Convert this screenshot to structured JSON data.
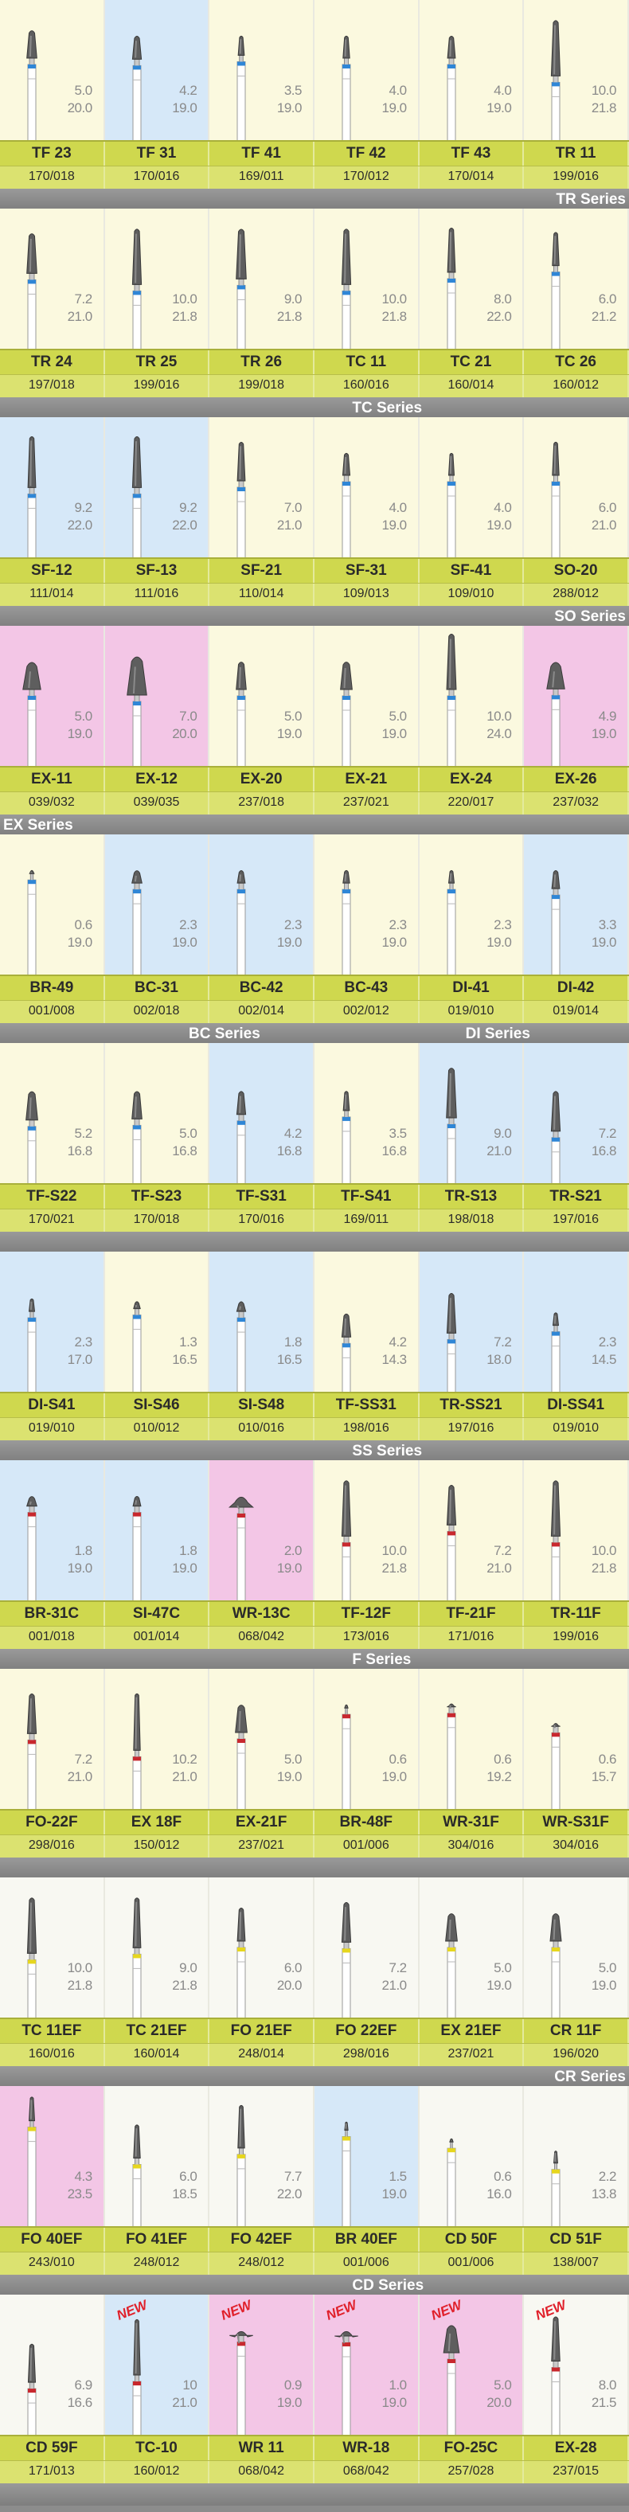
{
  "rows": [
    {
      "ring": "#2f86d6",
      "cells": [
        {
          "name": "TF 23",
          "code": "170/018",
          "head": "5.0",
          "length": "20.0",
          "bg": "#fbf9df"
        },
        {
          "name": "TF 31",
          "code": "170/016",
          "head": "4.2",
          "length": "19.0",
          "bg": "#d6e8f8"
        },
        {
          "name": "TF 41",
          "code": "169/011",
          "head": "3.5",
          "length": "19.0",
          "bg": "#fbf9df"
        },
        {
          "name": "TF 42",
          "code": "170/012",
          "head": "4.0",
          "length": "19.0",
          "bg": "#fbf9df"
        },
        {
          "name": "TF 43",
          "code": "170/014",
          "head": "4.0",
          "length": "19.0",
          "bg": "#fbf9df"
        },
        {
          "name": "TR 11",
          "code": "199/016",
          "head": "10.0",
          "length": "21.8",
          "bg": "#fbf9df"
        }
      ],
      "series": [
        {
          "text": "TR Series",
          "position": "right"
        }
      ]
    },
    {
      "ring": "#2f86d6",
      "cells": [
        {
          "name": "TR 24",
          "code": "197/018",
          "head": "7.2",
          "length": "21.0",
          "bg": "#fbf9df"
        },
        {
          "name": "TR 25",
          "code": "199/016",
          "head": "10.0",
          "length": "21.8",
          "bg": "#fbf9df"
        },
        {
          "name": "TR 26",
          "code": "199/018",
          "head": "9.0",
          "length": "21.8",
          "bg": "#fbf9df"
        },
        {
          "name": "TC 11",
          "code": "160/016",
          "head": "10.0",
          "length": "21.8",
          "bg": "#fbf9df"
        },
        {
          "name": "TC 21",
          "code": "160/014",
          "head": "8.0",
          "length": "22.0",
          "bg": "#fbf9df"
        },
        {
          "name": "TC 26",
          "code": "160/012",
          "head": "6.0",
          "length": "21.2",
          "bg": "#fbf9df"
        }
      ],
      "series": [
        {
          "text": "TC Series",
          "position": "center"
        }
      ]
    },
    {
      "ring": "#2f86d6",
      "cells": [
        {
          "name": "SF-12",
          "code": "111/014",
          "head": "9.2",
          "length": "22.0",
          "bg": "#d6e8f8"
        },
        {
          "name": "SF-13",
          "code": "111/016",
          "head": "9.2",
          "length": "22.0",
          "bg": "#d6e8f8"
        },
        {
          "name": "SF-21",
          "code": "110/014",
          "head": "7.0",
          "length": "21.0",
          "bg": "#fbf9df"
        },
        {
          "name": "SF-31",
          "code": "109/013",
          "head": "4.0",
          "length": "19.0",
          "bg": "#fbf9df"
        },
        {
          "name": "SF-41",
          "code": "109/010",
          "head": "4.0",
          "length": "19.0",
          "bg": "#fbf9df"
        },
        {
          "name": "SO-20",
          "code": "288/012",
          "head": "6.0",
          "length": "21.0",
          "bg": "#fbf9df"
        }
      ],
      "series": [
        {
          "text": "SO Series",
          "position": "right"
        }
      ]
    },
    {
      "ring": "#2f86d6",
      "cells": [
        {
          "name": "EX-11",
          "code": "039/032",
          "head": "5.0",
          "length": "19.0",
          "bg": "#f3c6e6"
        },
        {
          "name": "EX-12",
          "code": "039/035",
          "head": "7.0",
          "length": "20.0",
          "bg": "#f3c6e6"
        },
        {
          "name": "EX-20",
          "code": "237/018",
          "head": "5.0",
          "length": "19.0",
          "bg": "#fbf9df"
        },
        {
          "name": "EX-21",
          "code": "237/021",
          "head": "5.0",
          "length": "19.0",
          "bg": "#fbf9df"
        },
        {
          "name": "EX-24",
          "code": "220/017",
          "head": "10.0",
          "length": "24.0",
          "bg": "#fbf9df"
        },
        {
          "name": "EX-26",
          "code": "237/032",
          "head": "4.9",
          "length": "19.0",
          "bg": "#f3c6e6"
        }
      ],
      "series": [
        {
          "text": "EX Series",
          "position": "left"
        }
      ]
    },
    {
      "ring": "#2f86d6",
      "cells": [
        {
          "name": "BR-49",
          "code": "001/008",
          "head": "0.6",
          "length": "19.0",
          "bg": "#fbf9df"
        },
        {
          "name": "BC-31",
          "code": "002/018",
          "head": "2.3",
          "length": "19.0",
          "bg": "#d6e8f8"
        },
        {
          "name": "BC-42",
          "code": "002/014",
          "head": "2.3",
          "length": "19.0",
          "bg": "#d6e8f8"
        },
        {
          "name": "BC-43",
          "code": "002/012",
          "head": "2.3",
          "length": "19.0",
          "bg": "#fbf9df"
        },
        {
          "name": "DI-41",
          "code": "019/010",
          "head": "2.3",
          "length": "19.0",
          "bg": "#fbf9df"
        },
        {
          "name": "DI-42",
          "code": "019/014",
          "head": "3.3",
          "length": "19.0",
          "bg": "#d6e8f8"
        }
      ],
      "series": [
        {
          "text": "BC Series",
          "position": "center-left"
        },
        {
          "text": "DI Series",
          "position": "center-right"
        }
      ]
    },
    {
      "ring": "#2f86d6",
      "cells": [
        {
          "name": "TF-S22",
          "code": "170/021",
          "head": "5.2",
          "length": "16.8",
          "bg": "#fbf9df"
        },
        {
          "name": "TF-S23",
          "code": "170/018",
          "head": "5.0",
          "length": "16.8",
          "bg": "#fbf9df"
        },
        {
          "name": "TF-S31",
          "code": "170/016",
          "head": "4.2",
          "length": "16.8",
          "bg": "#d6e8f8"
        },
        {
          "name": "TF-S41",
          "code": "169/011",
          "head": "3.5",
          "length": "16.8",
          "bg": "#fbf9df"
        },
        {
          "name": "TR-S13",
          "code": "198/018",
          "head": "9.0",
          "length": "21.0",
          "bg": "#d6e8f8"
        },
        {
          "name": "TR-S21",
          "code": "197/016",
          "head": "7.2",
          "length": "16.8",
          "bg": "#d6e8f8"
        }
      ],
      "series": []
    },
    {
      "ring": "#2f86d6",
      "cells": [
        {
          "name": "DI-S41",
          "code": "019/010",
          "head": "2.3",
          "length": "17.0",
          "bg": "#d6e8f8"
        },
        {
          "name": "SI-S46",
          "code": "010/012",
          "head": "1.3",
          "length": "16.5",
          "bg": "#fbf9df"
        },
        {
          "name": "SI-S48",
          "code": "010/016",
          "head": "1.8",
          "length": "16.5",
          "bg": "#d6e8f8"
        },
        {
          "name": "TF-SS31",
          "code": "198/016",
          "head": "4.2",
          "length": "14.3",
          "bg": "#fbf9df"
        },
        {
          "name": "TR-SS21",
          "code": "197/016",
          "head": "7.2",
          "length": "18.0",
          "bg": "#d6e8f8"
        },
        {
          "name": "DI-SS41",
          "code": "019/010",
          "head": "2.3",
          "length": "14.5",
          "bg": "#d6e8f8"
        }
      ],
      "series": [
        {
          "text": "SS Series",
          "position": "center"
        }
      ]
    },
    {
      "ring": "#c8282e",
      "cells": [
        {
          "name": "BR-31C",
          "code": "001/018",
          "head": "1.8",
          "length": "19.0",
          "bg": "#d6e8f8"
        },
        {
          "name": "SI-47C",
          "code": "001/014",
          "head": "1.8",
          "length": "19.0",
          "bg": "#d6e8f8"
        },
        {
          "name": "WR-13C",
          "code": "068/042",
          "head": "2.0",
          "length": "19.0",
          "bg": "#f3c6e6"
        },
        {
          "name": "TF-12F",
          "code": "173/016",
          "head": "10.0",
          "length": "21.8",
          "bg": "#fbf9df"
        },
        {
          "name": "TF-21F",
          "code": "171/016",
          "head": "7.2",
          "length": "21.0",
          "bg": "#fbf9df"
        },
        {
          "name": "TR-11F",
          "code": "199/016",
          "head": "10.0",
          "length": "21.8",
          "bg": "#fbf9df"
        }
      ],
      "series": [
        {
          "text": "F Series",
          "position": "center"
        }
      ]
    },
    {
      "ring": "#c8282e",
      "cells": [
        {
          "name": "FO-22F",
          "code": "298/016",
          "head": "7.2",
          "length": "21.0",
          "bg": "#fbf9df"
        },
        {
          "name": "EX 18F",
          "code": "150/012",
          "head": "10.2",
          "length": "21.0",
          "bg": "#fbf9df"
        },
        {
          "name": "EX-21F",
          "code": "237/021",
          "head": "5.0",
          "length": "19.0",
          "bg": "#fbf9df"
        },
        {
          "name": "BR-48F",
          "code": "001/006",
          "head": "0.6",
          "length": "19.0",
          "bg": "#fbf9df"
        },
        {
          "name": "WR-31F",
          "code": "304/016",
          "head": "0.6",
          "length": "19.2",
          "bg": "#fbf9df"
        },
        {
          "name": "WR-S31F",
          "code": "304/016",
          "head": "0.6",
          "length": "15.7",
          "bg": "#fbf9df"
        }
      ],
      "series": []
    },
    {
      "ring": "#e6d61e",
      "cells": [
        {
          "name": "TC 11EF",
          "code": "160/016",
          "head": "10.0",
          "length": "21.8",
          "bg": "#f8f8f2"
        },
        {
          "name": "TC 21EF",
          "code": "160/014",
          "head": "9.0",
          "length": "21.8",
          "bg": "#f8f8f2"
        },
        {
          "name": "FO 21EF",
          "code": "248/014",
          "head": "6.0",
          "length": "20.0",
          "bg": "#f8f8f2"
        },
        {
          "name": "FO 22EF",
          "code": "298/016",
          "head": "7.2",
          "length": "21.0",
          "bg": "#f8f8f2"
        },
        {
          "name": "EX 21EF",
          "code": "237/021",
          "head": "5.0",
          "length": "19.0",
          "bg": "#f8f8f2"
        },
        {
          "name": "CR 11F",
          "code": "196/020",
          "head": "5.0",
          "length": "19.0",
          "bg": "#f8f8f2"
        }
      ],
      "series": [
        {
          "text": "CR Series",
          "position": "right"
        }
      ]
    },
    {
      "ring": "#e6d61e",
      "cells": [
        {
          "name": "FO 40EF",
          "code": "243/010",
          "head": "4.3",
          "length": "23.5",
          "bg": "#f3c6e6"
        },
        {
          "name": "FO 41EF",
          "code": "248/012",
          "head": "6.0",
          "length": "18.5",
          "bg": "#f8f8f2"
        },
        {
          "name": "FO 42EF",
          "code": "248/012",
          "head": "7.7",
          "length": "22.0",
          "bg": "#f8f8f2"
        },
        {
          "name": "BR 40EF",
          "code": "001/006",
          "head": "1.5",
          "length": "19.0",
          "bg": "#d6e8f8"
        },
        {
          "name": "CD 50F",
          "code": "001/006",
          "head": "0.6",
          "length": "16.0",
          "bg": "#f8f8f2"
        },
        {
          "name": "CD 51F",
          "code": "138/007",
          "head": "2.2",
          "length": "13.8",
          "bg": "#f8f8f2"
        }
      ],
      "series": [
        {
          "text": "CD Series",
          "position": "center"
        }
      ]
    },
    {
      "ring": "#c8282e",
      "cells": [
        {
          "name": "CD 59F",
          "code": "171/013",
          "head": "6.9",
          "length": "16.6",
          "bg": "#f8f8f2"
        },
        {
          "name": "TC-10",
          "code": "160/012",
          "head": "10",
          "length": "21.0",
          "bg": "#d6e8f8",
          "badge": "NEW"
        },
        {
          "name": "WR 11",
          "code": "068/042",
          "head": "0.9",
          "length": "19.0",
          "bg": "#f3c6e6",
          "badge": "NEW"
        },
        {
          "name": "WR-18",
          "code": "068/042",
          "head": "1.0",
          "length": "19.0",
          "bg": "#f3c6e6",
          "badge": "NEW"
        },
        {
          "name": "FO-25C",
          "code": "257/028",
          "head": "5.0",
          "length": "20.0",
          "bg": "#f3c6e6",
          "badge": "NEW"
        },
        {
          "name": "EX-28",
          "code": "237/015",
          "head": "8.0",
          "length": "21.5",
          "bg": "#f8f8f2",
          "badge": "NEW"
        }
      ],
      "series": []
    }
  ]
}
